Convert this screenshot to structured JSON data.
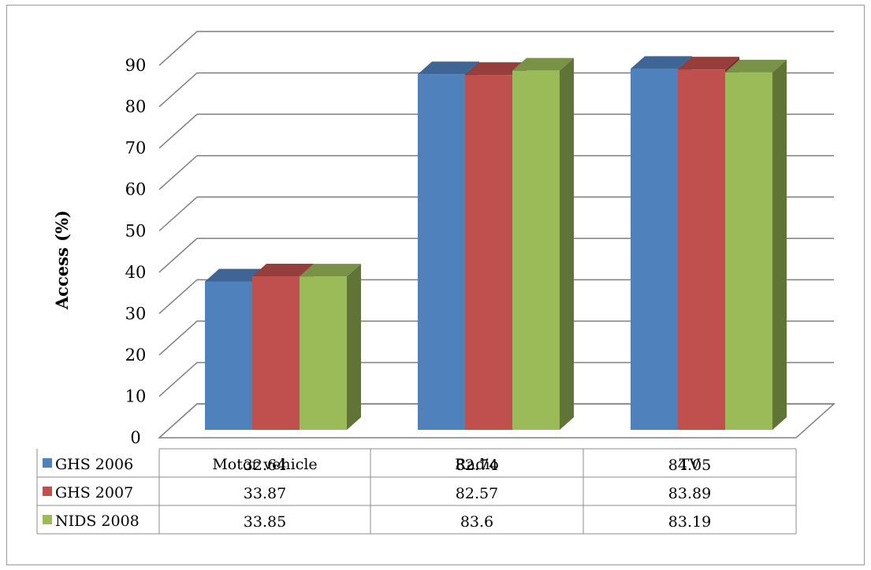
{
  "chart_data": {
    "type": "bar",
    "ylabel": "Access (%)",
    "ylim": [
      0,
      90
    ],
    "yticks": [
      0,
      10,
      20,
      30,
      40,
      50,
      60,
      70,
      80,
      90
    ],
    "grid": true,
    "categories": [
      "Motor vehicle",
      "Radio",
      "TV"
    ],
    "series": [
      {
        "name": "GHS 2006",
        "values": [
          32.64,
          82.74,
          84.05
        ],
        "labels": [
          "32.64",
          "82.74",
          "84.05"
        ],
        "color": "#4F81BD"
      },
      {
        "name": "GHS 2007",
        "values": [
          33.87,
          82.57,
          83.89
        ],
        "labels": [
          "33.87",
          "82.57",
          "83.89"
        ],
        "color": "#C0504D"
      },
      {
        "name": "NIDS 2008",
        "values": [
          33.85,
          83.6,
          83.19
        ],
        "labels": [
          "33.85",
          "83.6",
          "83.19"
        ],
        "color": "#9BBB59"
      }
    ],
    "legend": "data-table-left"
  }
}
